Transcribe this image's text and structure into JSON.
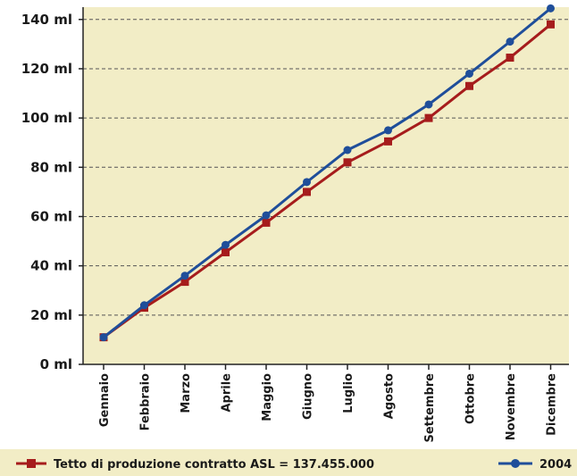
{
  "chart_data": {
    "type": "line",
    "categories": [
      "Gennaio",
      "Febbraio",
      "Marzo",
      "Aprile",
      "Maggio",
      "Giugno",
      "Luglio",
      "Agosto",
      "Settembre",
      "Ottobre",
      "Novembre",
      "Dicembre"
    ],
    "y_ticks": [
      "0 ml",
      "20 ml",
      "40 ml",
      "60 ml",
      "80 ml",
      "100 ml",
      "120 ml",
      "140 ml"
    ],
    "ylim": [
      0,
      145
    ],
    "y_tick_step": 20,
    "grid": "horizontal-dashed",
    "legend_position": "bottom",
    "background_color": "#f2edc6",
    "series": [
      {
        "name": "Tetto di produzione contratto ASL = 137.455.000",
        "color": "#a61c1c",
        "marker": "square",
        "values": [
          11,
          23,
          33.5,
          45.5,
          57.5,
          70,
          82,
          90.5,
          100,
          113,
          124.5,
          138
        ]
      },
      {
        "name": "2004",
        "color": "#1f4e9a",
        "marker": "circle",
        "values": [
          11,
          24,
          36,
          48.5,
          60.5,
          74,
          87,
          95,
          105.5,
          118,
          131,
          144.5
        ]
      }
    ]
  }
}
